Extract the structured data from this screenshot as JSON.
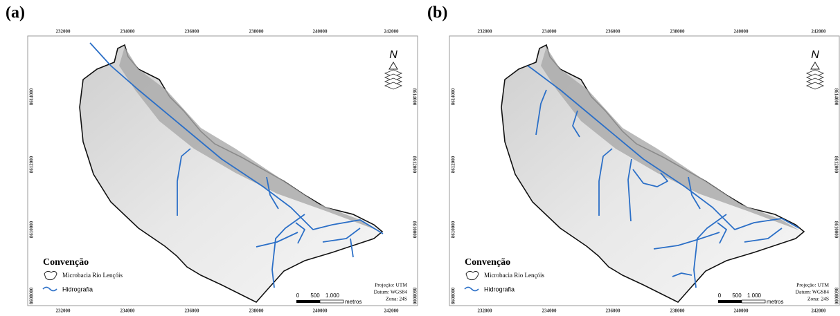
{
  "panels": [
    {
      "label": "(a)",
      "x_ticks": [
        "232000",
        "234000",
        "236000",
        "238000",
        "240000",
        "242000"
      ],
      "y_ticks": [
        "8614000",
        "8612000",
        "8610000",
        "8608000"
      ],
      "north": "N",
      "legend": {
        "title": "Convenção",
        "items": [
          "Microbacia Rio Lençóis",
          "Hidrografia"
        ]
      },
      "scale": {
        "labels": [
          "0",
          "500",
          "1.000"
        ],
        "unit": "metros"
      },
      "projection": [
        "Projeção: UTM",
        "Datum: WGS84",
        "Zona: 24S"
      ]
    },
    {
      "label": "(b)",
      "x_ticks": [
        "232000",
        "234000",
        "236000",
        "238000",
        "240000",
        "242000"
      ],
      "y_ticks": [
        "8614000",
        "8612000",
        "8610000",
        "8608000"
      ],
      "north": "N",
      "legend": {
        "title": "Convenção",
        "items": [
          "Microbacia Rio Lençóis",
          "Hidrografia"
        ]
      },
      "scale": {
        "labels": [
          "0",
          "500",
          "1.000"
        ],
        "unit": "metros"
      },
      "projection": [
        "Projeção: UTM",
        "Datum: WGS84",
        "Zona: 24S"
      ]
    }
  ]
}
